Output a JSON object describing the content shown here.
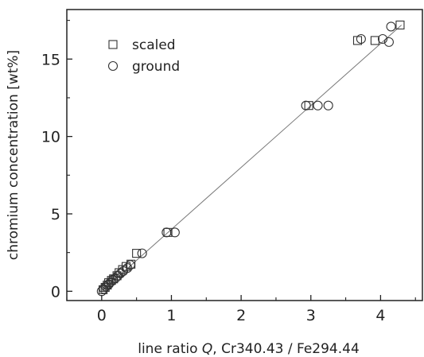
{
  "chart_data": {
    "type": "scatter",
    "xlabel_prefix": "line ratio ",
    "xlabel_symbol": "Q",
    "xlabel_suffix": ", Cr340.43 / Fe294.44",
    "ylabel": "chromium concentration [wt%]",
    "xlim": [
      -0.5,
      4.6
    ],
    "ylim": [
      -0.6,
      18.2
    ],
    "xticks": [
      0,
      1,
      2,
      3,
      4
    ],
    "yticks": [
      0,
      5,
      10,
      15
    ],
    "grid": false,
    "legend_position": "top-left",
    "series": [
      {
        "name": "scaled",
        "marker": "square",
        "points": [
          [
            0.02,
            0.1
          ],
          [
            0.05,
            0.25
          ],
          [
            0.08,
            0.4
          ],
          [
            0.1,
            0.55
          ],
          [
            0.14,
            0.7
          ],
          [
            0.17,
            0.8
          ],
          [
            0.22,
            1.0
          ],
          [
            0.25,
            1.2
          ],
          [
            0.3,
            1.4
          ],
          [
            0.35,
            1.6
          ],
          [
            0.42,
            1.75
          ],
          [
            0.5,
            2.45
          ],
          [
            0.95,
            3.8
          ],
          [
            2.97,
            12.0
          ],
          [
            3.67,
            16.2
          ],
          [
            3.92,
            16.2
          ],
          [
            4.28,
            17.2
          ]
        ]
      },
      {
        "name": "ground",
        "marker": "circle",
        "points": [
          [
            0.0,
            0.0
          ],
          [
            0.03,
            0.15
          ],
          [
            0.06,
            0.3
          ],
          [
            0.1,
            0.45
          ],
          [
            0.13,
            0.6
          ],
          [
            0.16,
            0.75
          ],
          [
            0.2,
            0.85
          ],
          [
            0.23,
            1.0
          ],
          [
            0.27,
            1.15
          ],
          [
            0.31,
            1.3
          ],
          [
            0.37,
            1.5
          ],
          [
            0.41,
            1.7
          ],
          [
            0.58,
            2.45
          ],
          [
            0.93,
            3.8
          ],
          [
            1.05,
            3.8
          ],
          [
            2.93,
            12.0
          ],
          [
            3.1,
            12.0
          ],
          [
            3.25,
            12.0
          ],
          [
            3.72,
            16.3
          ],
          [
            4.03,
            16.3
          ],
          [
            4.12,
            16.1
          ],
          [
            4.15,
            17.1
          ]
        ]
      }
    ],
    "fit_line": {
      "x": [
        0.0,
        4.3
      ],
      "y": [
        0.0,
        17.2
      ]
    }
  },
  "colors": {
    "axis": "#222222",
    "marker_stroke": "#333333",
    "fit_line": "#777777",
    "background": "#ffffff"
  }
}
